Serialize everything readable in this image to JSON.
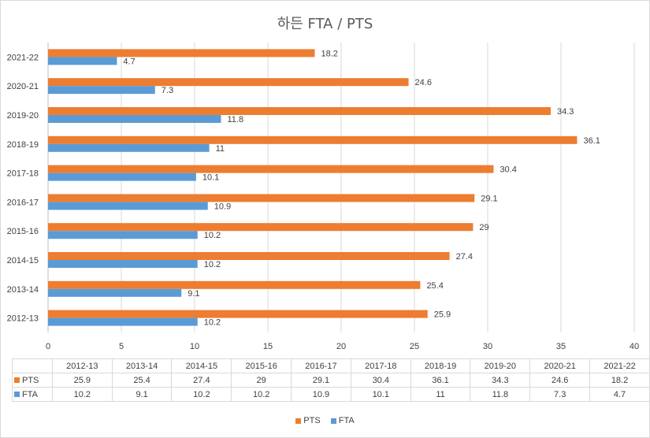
{
  "chart_data": {
    "type": "bar",
    "orientation": "horizontal",
    "title": "하든 FTA / PTS",
    "categories": [
      "2012-13",
      "2013-14",
      "2014-15",
      "2015-16",
      "2016-17",
      "2017-18",
      "2018-19",
      "2019-20",
      "2020-21",
      "2021-22"
    ],
    "series": [
      {
        "name": "PTS",
        "color": "#ED7D31",
        "values": [
          25.9,
          25.4,
          27.4,
          29,
          29.1,
          30.4,
          36.1,
          34.3,
          24.6,
          18.2
        ]
      },
      {
        "name": "FTA",
        "color": "#5B9BD5",
        "values": [
          10.2,
          9.1,
          10.2,
          10.2,
          10.9,
          10.1,
          11,
          11.8,
          7.3,
          4.7
        ]
      }
    ],
    "xlim": [
      0,
      40
    ],
    "xticks": [
      0,
      5,
      10,
      15,
      20,
      25,
      30,
      35,
      40
    ],
    "grid": true,
    "data_table": true,
    "legend": "bottom"
  }
}
